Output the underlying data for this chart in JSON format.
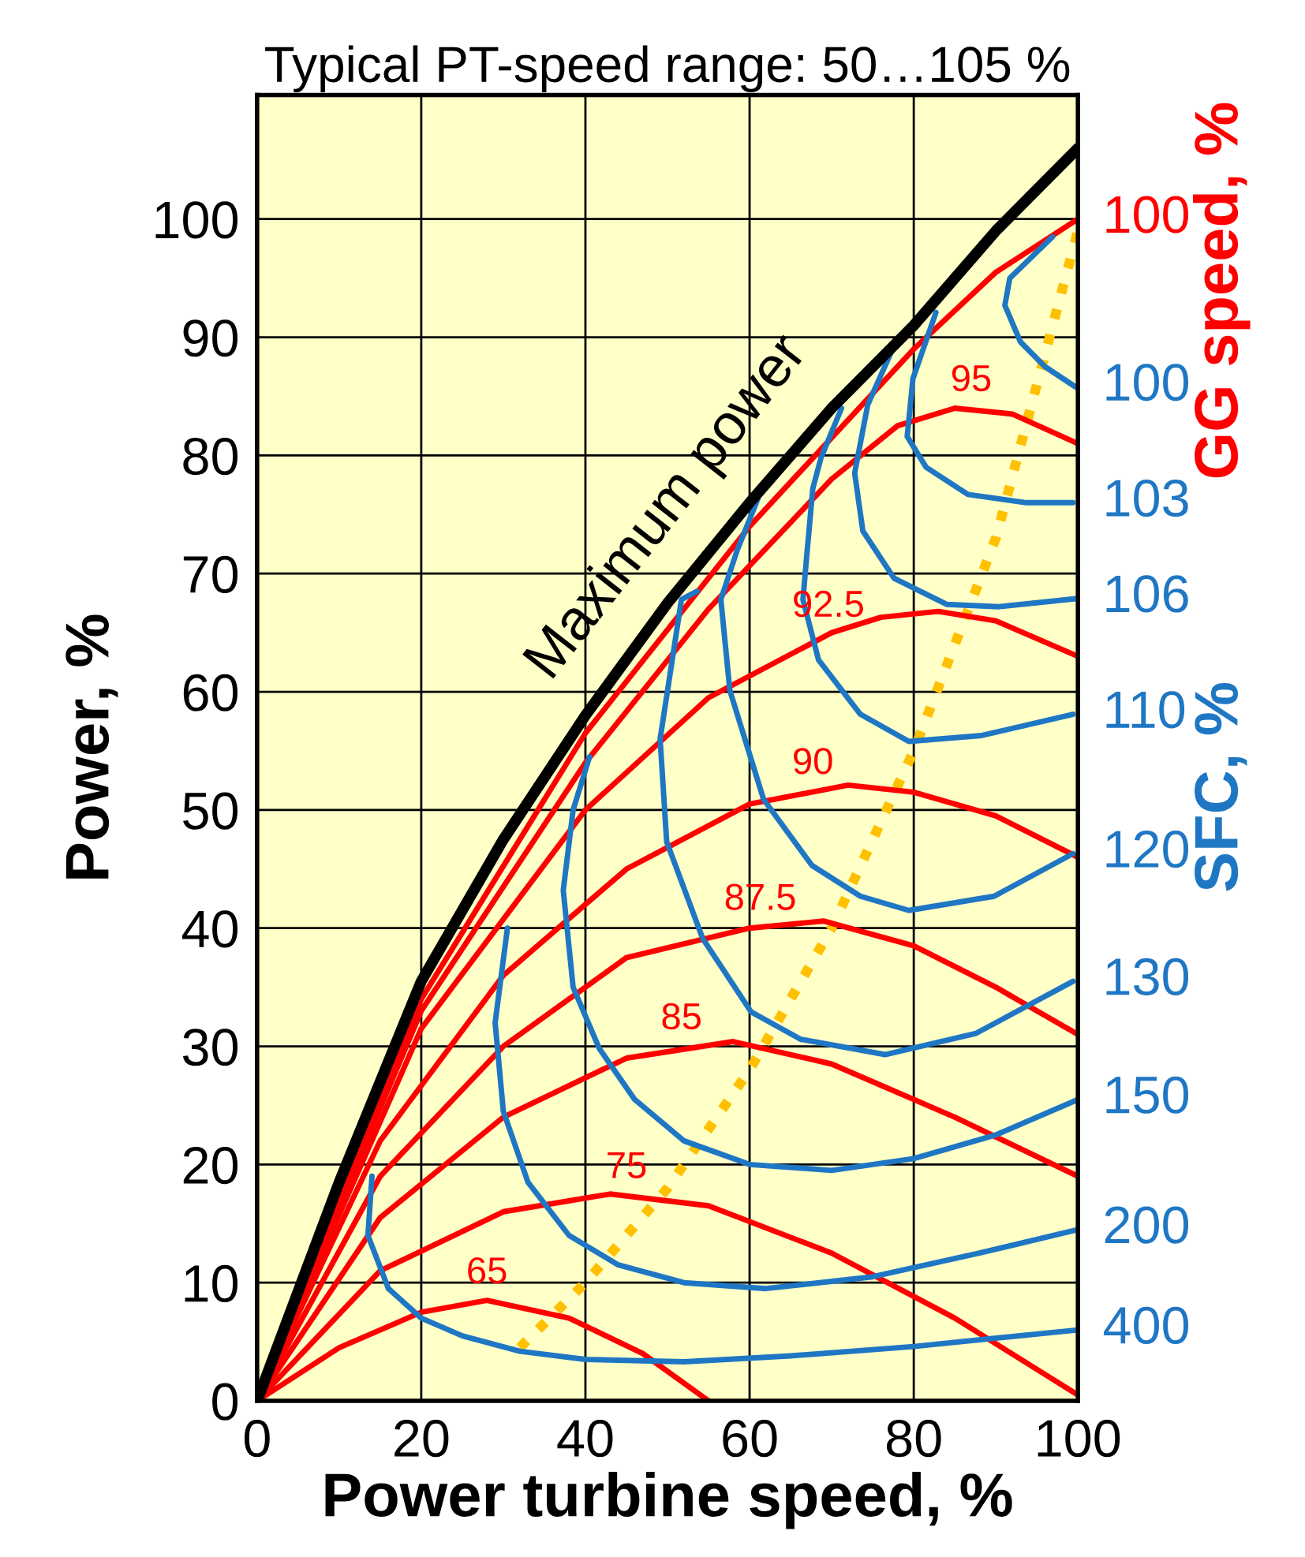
{
  "chart_data": {
    "type": "line",
    "title": "Typical PT-speed range: 50…105 %",
    "xlabel": "Power turbine speed, %",
    "ylabel": "Power, %",
    "xlim": [
      0,
      100
    ],
    "ylim": [
      0,
      110.5
    ],
    "xticks": [
      0,
      20,
      40,
      60,
      80,
      100
    ],
    "yticks": [
      0,
      10,
      20,
      30,
      40,
      50,
      60,
      70,
      80,
      90,
      100
    ],
    "grid": true,
    "legend": false,
    "marker": "none",
    "line_style": "solid",
    "annotations": [
      "GG speed, %",
      "SFC, %",
      "Maximum power",
      {
        "text": "100",
        "x": 100,
        "y": 100
      },
      {
        "text": "95",
        "x": 87,
        "y": 84
      },
      {
        "text": "92.5",
        "x": 69.6,
        "y": 64.9
      },
      {
        "text": "90",
        "x": 67.7,
        "y": 51.6
      },
      {
        "text": "87.5",
        "x": 61.3,
        "y": 40.1
      },
      {
        "text": "85",
        "x": 51.7,
        "y": 30
      },
      {
        "text": "75",
        "x": 45,
        "y": 17.4
      },
      {
        "text": "65",
        "x": 28,
        "y": 8.5
      }
    ],
    "series": [
      {
        "color": "#000000",
        "x": [
          0,
          10,
          20,
          30,
          40,
          50,
          60,
          70,
          80,
          90,
          100
        ],
        "values": [
          0,
          18.5,
          35.5,
          47.5,
          58,
          67.5,
          76,
          84,
          91,
          99,
          106
        ]
      },
      {
        "color": "#ffc000",
        "line_style": "dotted",
        "x": [
          32,
          40,
          50,
          60,
          70,
          80,
          90,
          100
        ],
        "values": [
          4.5,
          10,
          18,
          28,
          40,
          55,
          73,
          99
        ]
      },
      {
        "color": "#ff0000",
        "x": [
          0,
          20,
          40,
          60,
          80,
          90,
          100
        ],
        "values": [
          0,
          34,
          56.5,
          74,
          89,
          95.5,
          100
        ]
      },
      {
        "color": "#ff0000",
        "x": [
          0,
          20,
          40,
          55,
          70,
          78,
          85,
          92,
          100
        ],
        "values": [
          0,
          33,
          54,
          67,
          78,
          82.5,
          84,
          83.5,
          81
        ]
      },
      {
        "color": "#ff0000",
        "x": [
          0,
          20,
          40,
          55,
          70,
          76,
          83,
          90,
          100
        ],
        "values": [
          0,
          31.5,
          50,
          59.5,
          65,
          66.3,
          66.8,
          66,
          63
        ]
      },
      {
        "color": "#ff0000",
        "x": [
          0,
          15,
          30,
          45,
          60,
          72,
          80,
          90,
          100
        ],
        "values": [
          0,
          22,
          36,
          45,
          50.5,
          52.1,
          51.5,
          49.5,
          46
        ]
      },
      {
        "color": "#ff0000",
        "x": [
          0,
          15,
          30,
          45,
          60,
          69,
          80,
          90,
          100
        ],
        "values": [
          0,
          19,
          30,
          37.5,
          40,
          40.6,
          38.5,
          35,
          31
        ]
      },
      {
        "color": "#ff0000",
        "x": [
          0,
          15,
          30,
          45,
          58,
          70,
          85,
          100
        ],
        "values": [
          0,
          15.5,
          24,
          29,
          30.4,
          28.5,
          24,
          19
        ]
      },
      {
        "color": "#ff0000",
        "x": [
          0,
          15,
          30,
          43,
          55,
          70,
          85,
          100
        ],
        "values": [
          0,
          11,
          16,
          17.5,
          16.5,
          12.5,
          7,
          0.5
        ]
      },
      {
        "color": "#ff0000",
        "x": [
          0,
          10,
          20,
          28,
          38,
          47,
          55
        ],
        "values": [
          0,
          4.5,
          7.5,
          8.5,
          7,
          4,
          0
        ]
      },
      {
        "name": "100",
        "color": "#1f77c4",
        "x": [
          96.9,
          91.7,
          91.1,
          93,
          96,
          99.7
        ],
        "values": [
          98.5,
          95,
          92.7,
          89.6,
          87.5,
          85.8
        ]
      },
      {
        "name": "103",
        "color": "#1f77c4",
        "x": [
          82.7,
          79.9,
          79.2,
          81.5,
          86.6,
          93.7,
          99.4
        ],
        "values": [
          92.1,
          86.5,
          81.6,
          79,
          76.7,
          76,
          76
        ]
      },
      {
        "name": "106",
        "color": "#1f77c4",
        "x": [
          78,
          74.4,
          72.8,
          73.8,
          77.6,
          84,
          90.4,
          100
        ],
        "values": [
          89.9,
          84.3,
          78.5,
          73.6,
          69.6,
          67.4,
          67.2,
          67.9
        ]
      },
      {
        "name": "110",
        "color": "#1f77c4",
        "x": [
          71.2,
          68.7,
          67.7,
          67,
          66.5,
          68.4,
          73.5,
          79.4,
          88.3,
          99.4
        ],
        "values": [
          84,
          79.8,
          77.2,
          71.8,
          67.8,
          62.7,
          58.1,
          55.8,
          56.3,
          58.1
        ]
      },
      {
        "name": "120",
        "color": "#1f77c4",
        "x": [
          61,
          58.5,
          56.5,
          57.6,
          61.7,
          67.6,
          73.5,
          79.4,
          89.8,
          99.4
        ],
        "values": [
          76.3,
          72,
          67.8,
          60.1,
          50.9,
          45.3,
          42.7,
          41.5,
          42.7,
          46.3
        ]
      },
      {
        "name": "130",
        "color": "#1f77c4",
        "x": [
          53.6,
          51.7,
          49.1,
          49.9,
          54.3,
          60.2,
          66.2,
          76.5,
          87.6,
          99.4
        ],
        "values": [
          68.5,
          67.8,
          56,
          47.3,
          39.1,
          32.9,
          30.6,
          29.3,
          31.1,
          35.5
        ]
      },
      {
        "name": "150",
        "color": "#1f77c4",
        "x": [
          40.5,
          38.5,
          37.3,
          38.5,
          41.7,
          46,
          52,
          60,
          70,
          80,
          90,
          100
        ],
        "values": [
          54.5,
          50,
          43.2,
          35,
          29.8,
          25.5,
          22,
          20,
          19.5,
          20.5,
          22.5,
          25.5
        ]
      },
      {
        "name": "200",
        "color": "#1f77c4",
        "x": [
          30.5,
          29,
          30,
          33,
          38,
          44,
          52,
          62,
          75,
          88,
          100
        ],
        "values": [
          40,
          32,
          24.5,
          18.5,
          14,
          11.5,
          10,
          9.5,
          10.5,
          12.5,
          14.5
        ]
      },
      {
        "name": "400",
        "color": "#1f77c4",
        "x": [
          14,
          13.5,
          16,
          20,
          25,
          32,
          40,
          52,
          65,
          80,
          100
        ],
        "values": [
          19,
          14,
          9.5,
          7,
          5.5,
          4.2,
          3.5,
          3.3,
          3.8,
          4.6,
          6
        ]
      }
    ]
  }
}
